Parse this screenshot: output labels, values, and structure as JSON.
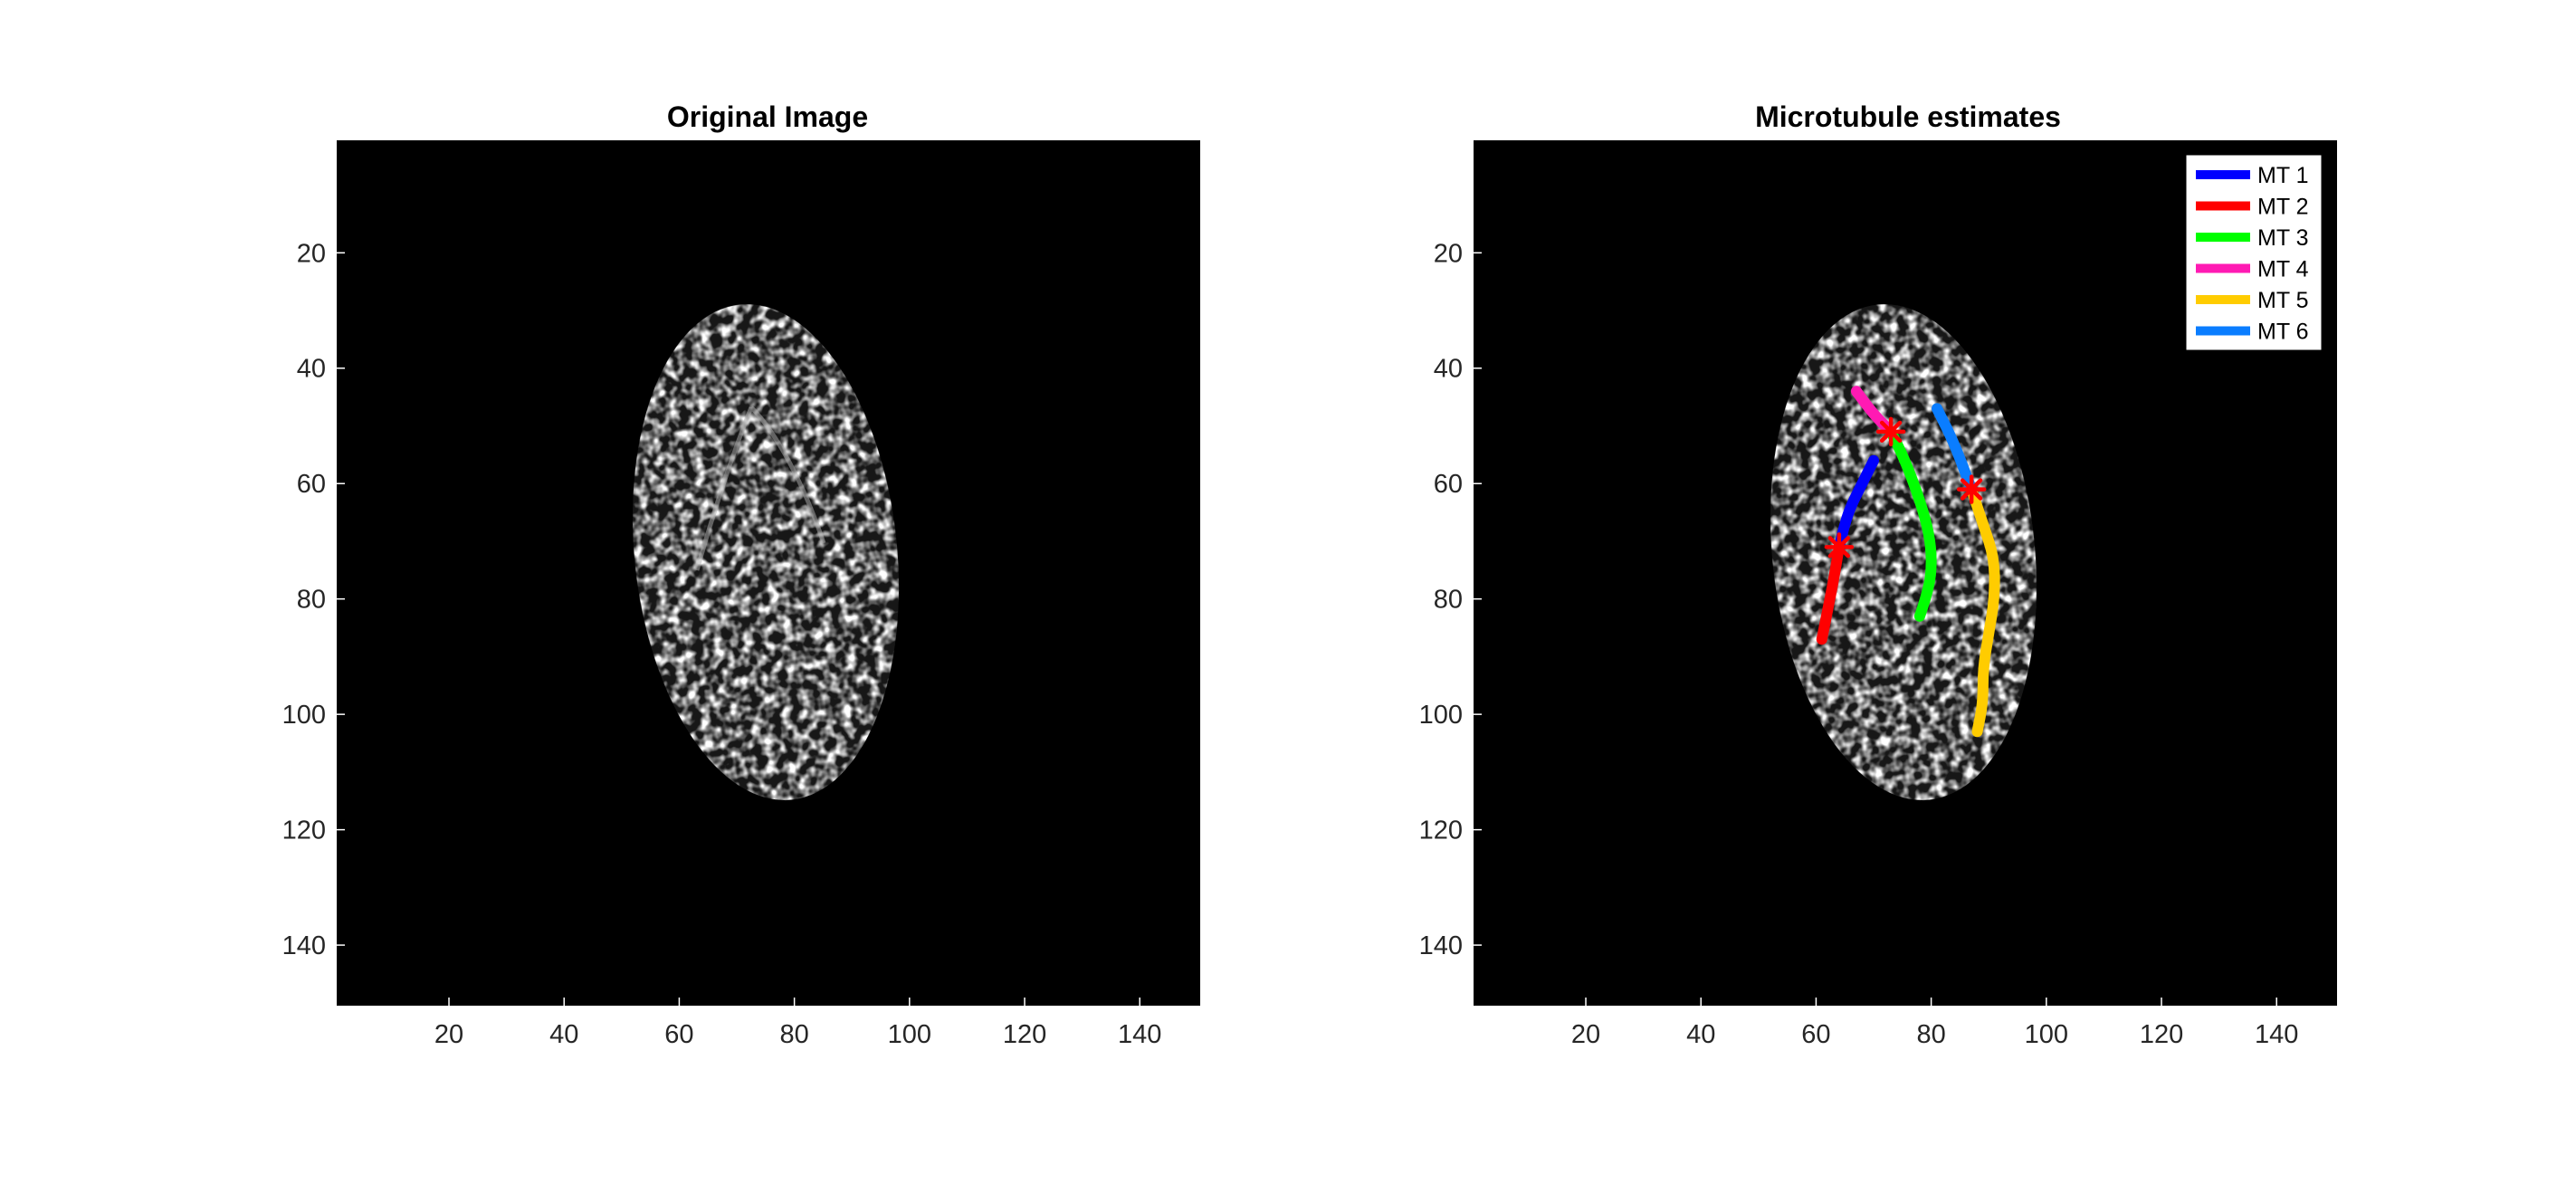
{
  "chart_data": [
    {
      "type": "heatmap",
      "title": "Original Image",
      "xlabel": "",
      "ylabel": "",
      "xlim": [
        0.5,
        150.5
      ],
      "ylim": [
        0.5,
        150.5
      ],
      "y_reversed": true,
      "x_ticks": [
        20,
        40,
        60,
        80,
        100,
        120,
        140
      ],
      "y_ticks": [
        20,
        40,
        60,
        80,
        100,
        120,
        140
      ],
      "colormap": "gray",
      "background": "#000000",
      "grid": false,
      "object": {
        "shape": "ellipse",
        "center_x": 75,
        "center_y": 77,
        "radius_x": 20,
        "radius_y": 38,
        "tilt_deg": -6
      }
    },
    {
      "type": "line",
      "title": "Microtubule estimates",
      "xlabel": "",
      "ylabel": "",
      "xlim": [
        0.5,
        150.5
      ],
      "ylim": [
        0.5,
        150.5
      ],
      "y_reversed": true,
      "x_ticks": [
        20,
        40,
        60,
        80,
        100,
        120,
        140
      ],
      "y_ticks": [
        20,
        40,
        60,
        80,
        100,
        120,
        140
      ],
      "legend_position": "top-right",
      "grid": false,
      "series": [
        {
          "name": "MT 1",
          "color": "#0000ff",
          "points": [
            [
              64,
              71
            ],
            [
              65,
              67
            ],
            [
              66,
              64
            ],
            [
              68,
              60
            ],
            [
              70,
              56
            ]
          ]
        },
        {
          "name": "MT 2",
          "color": "#ff0000",
          "points": [
            [
              61,
              87
            ],
            [
              62,
              82
            ],
            [
              63,
              77
            ],
            [
              64,
              71
            ]
          ]
        },
        {
          "name": "MT 3",
          "color": "#00ff00",
          "points": [
            [
              73,
              51
            ],
            [
              75,
              55
            ],
            [
              77,
              60
            ],
            [
              79,
              66
            ],
            [
              80,
              71
            ],
            [
              80,
              76
            ],
            [
              79,
              80
            ],
            [
              78,
              83
            ]
          ]
        },
        {
          "name": "MT 4",
          "color": "#ff1ab3",
          "points": [
            [
              67,
              44
            ],
            [
              70,
              48
            ],
            [
              73,
              51
            ]
          ]
        },
        {
          "name": "MT 5",
          "color": "#ffcc00",
          "points": [
            [
              87,
              61
            ],
            [
              89,
              67
            ],
            [
              91,
              73
            ],
            [
              91,
              80
            ],
            [
              90,
              86
            ],
            [
              89,
              92
            ],
            [
              89,
              98
            ],
            [
              88,
              103
            ]
          ]
        },
        {
          "name": "MT 6",
          "color": "#0a7dff",
          "points": [
            [
              81,
              47
            ],
            [
              84,
              53
            ],
            [
              87,
              61
            ]
          ]
        }
      ],
      "junctions": [
        [
          64,
          71
        ],
        [
          73,
          51
        ],
        [
          87,
          61
        ]
      ],
      "junction_color": "#ff0000"
    }
  ]
}
